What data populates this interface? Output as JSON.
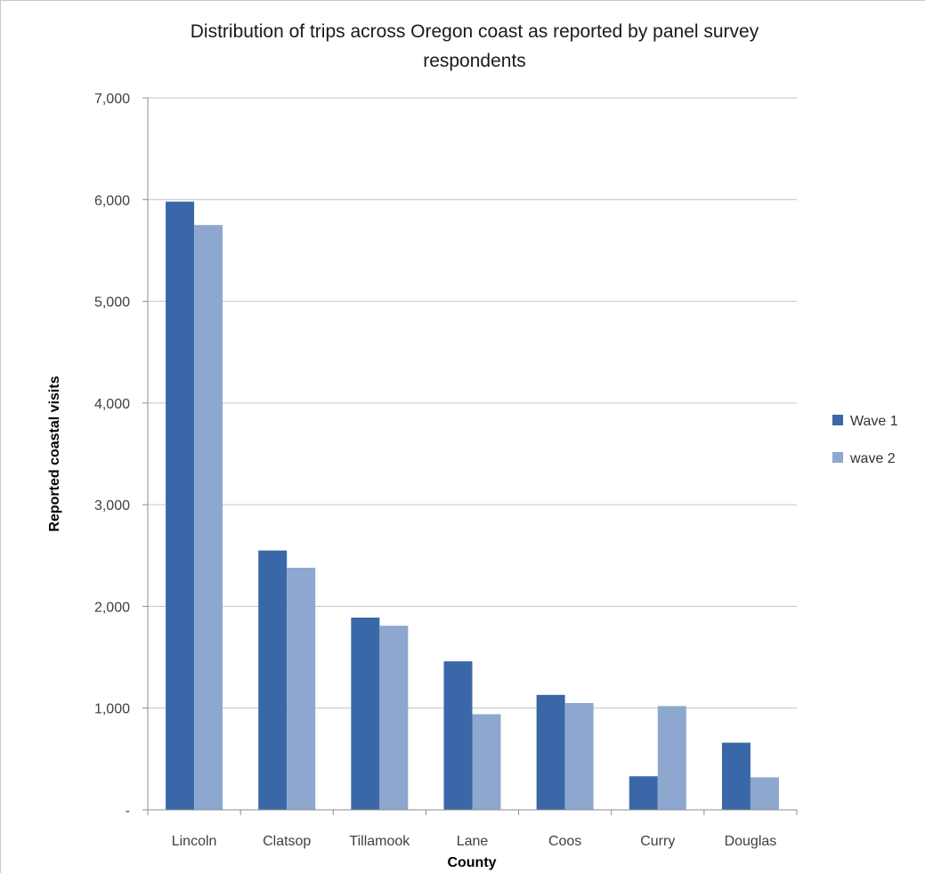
{
  "chart_data": {
    "type": "bar",
    "title": "Distribution of trips across Oregon coast as reported by panel survey respondents",
    "title_lines": [
      "Distribution of trips across Oregon coast as reported by panel survey",
      "respondents"
    ],
    "xlabel": "County",
    "ylabel": "Reported coastal visits",
    "ylim": [
      0,
      7000
    ],
    "yticks": [
      0,
      1000,
      2000,
      3000,
      4000,
      5000,
      6000,
      7000
    ],
    "ytick_labels": [
      "-",
      "1,000",
      "2,000",
      "3,000",
      "4,000",
      "5,000",
      "6,000",
      "7,000"
    ],
    "grid": true,
    "legend_position": "right",
    "categories": [
      "Lincoln",
      "Clatsop",
      "Tillamook",
      "Lane",
      "Coos",
      "Curry",
      "Douglas"
    ],
    "series": [
      {
        "name": "Wave 1",
        "color": "#3a67a8",
        "values": [
          5980,
          2550,
          1890,
          1460,
          1130,
          330,
          660
        ]
      },
      {
        "name": "wave 2",
        "color": "#8ea7cf",
        "values": [
          5750,
          2380,
          1810,
          940,
          1050,
          1020,
          320
        ]
      }
    ]
  }
}
